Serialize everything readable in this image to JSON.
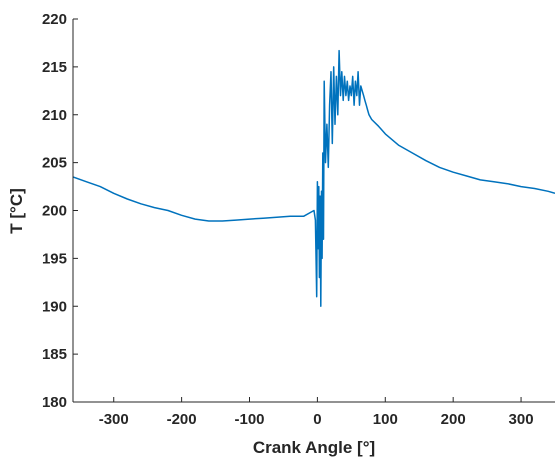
{
  "chart_data": {
    "type": "line",
    "title": "",
    "xlabel": "Crank Angle [°]",
    "ylabel": "T [°C]",
    "xlim": [
      -360,
      350
    ],
    "ylim": [
      180,
      220
    ],
    "xticks": [
      -300,
      -200,
      -100,
      0,
      100,
      200,
      300
    ],
    "yticks": [
      180,
      185,
      190,
      195,
      200,
      205,
      210,
      215,
      220
    ],
    "grid": false,
    "legend": "none",
    "series": [
      {
        "color": "#0072BD",
        "x": [
          -360,
          -340,
          -320,
          -300,
          -280,
          -260,
          -240,
          -220,
          -200,
          -180,
          -160,
          -140,
          -120,
          -100,
          -80,
          -60,
          -40,
          -20,
          -10,
          -5,
          -3,
          -1,
          0,
          1,
          2,
          3,
          4,
          5,
          6,
          7,
          8,
          9,
          10,
          12,
          14,
          16,
          18,
          20,
          22,
          24,
          26,
          28,
          30,
          32,
          34,
          36,
          38,
          40,
          42,
          44,
          46,
          48,
          50,
          52,
          54,
          56,
          58,
          60,
          62,
          64,
          66,
          68,
          70,
          72,
          74,
          76,
          80,
          90,
          100,
          120,
          140,
          160,
          180,
          200,
          220,
          240,
          260,
          280,
          300,
          320,
          340,
          350
        ],
        "y": [
          203.5,
          203.0,
          202.5,
          201.8,
          201.2,
          200.7,
          200.3,
          200.0,
          199.5,
          199.1,
          198.9,
          198.9,
          199.0,
          199.1,
          199.2,
          199.3,
          199.4,
          199.4,
          199.8,
          200.0,
          199.0,
          191.0,
          203.0,
          196.0,
          202.5,
          193.0,
          201.5,
          190.0,
          202.0,
          195.0,
          206.0,
          197.0,
          213.5,
          205.0,
          209.0,
          204.5,
          211.0,
          214.5,
          207.0,
          215.0,
          209.0,
          214.0,
          210.0,
          216.7,
          212.0,
          214.5,
          211.5,
          214.0,
          212.0,
          213.5,
          211.5,
          213.0,
          212.0,
          214.0,
          211.0,
          213.5,
          212.0,
          214.5,
          211.0,
          213.0,
          212.5,
          212.0,
          211.5,
          211.0,
          210.5,
          210.0,
          209.5,
          208.8,
          208.0,
          206.8,
          206.0,
          205.2,
          204.5,
          204.0,
          203.6,
          203.2,
          203.0,
          202.8,
          202.5,
          202.3,
          202.0,
          201.8
        ]
      }
    ]
  }
}
